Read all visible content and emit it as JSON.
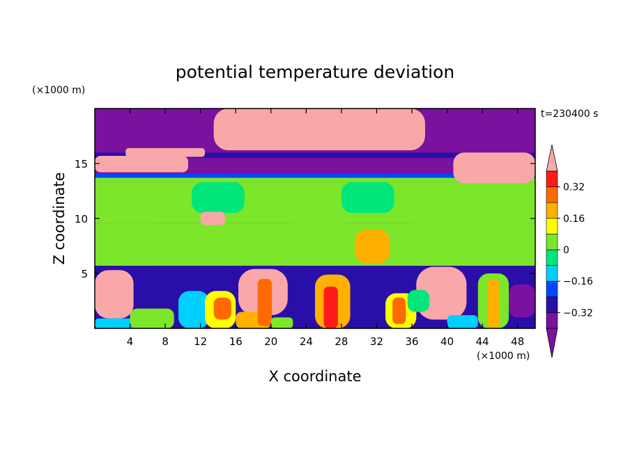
{
  "chart_data": {
    "type": "heatmap",
    "title": "potential temperature deviation",
    "xlabel": "X coordinate",
    "ylabel": "Z coordinate",
    "x_unit": "(×1000 m)",
    "y_unit": "(×1000 m)",
    "time_label": "t=230400 s",
    "xlim": [
      0,
      50
    ],
    "ylim": [
      0,
      20
    ],
    "x_ticks": [
      4,
      8,
      12,
      16,
      20,
      24,
      28,
      32,
      36,
      40,
      44,
      48
    ],
    "y_ticks": [
      5,
      10,
      15
    ],
    "x_tick_labels": [
      "4",
      "8",
      "12",
      "16",
      "20",
      "24",
      "28",
      "32",
      "36",
      "40",
      "44",
      "48"
    ],
    "y_tick_labels": [
      "5",
      "10",
      "15"
    ],
    "colorbar": {
      "levels": [
        -0.4,
        -0.32,
        -0.24,
        -0.16,
        -0.08,
        0,
        0.08,
        0.16,
        0.24,
        0.32,
        0.4
      ],
      "labels": [
        {
          "value": 0.32,
          "text": "0.32"
        },
        {
          "value": 0.16,
          "text": "0.16"
        },
        {
          "value": 0,
          "text": "0"
        },
        {
          "value": -0.16,
          "text": "−0.16"
        },
        {
          "value": -0.32,
          "text": "−0.32"
        }
      ],
      "colors": [
        "#7b119f",
        "#2a0ea8",
        "#0047ff",
        "#00cfff",
        "#00e67a",
        "#7ce62a",
        "#ffff00",
        "#ffb000",
        "#ff6a00",
        "#ff1a1a"
      ],
      "over_color": "#f8a8a8",
      "under_color": "#7b119f",
      "extend": "both"
    },
    "field": {
      "background_level_value": -0.36,
      "bands": [
        {
          "z_min": 0,
          "z_max": 5.4,
          "value": -0.28
        },
        {
          "z_min": 5.4,
          "z_max": 5.7,
          "value": -0.3
        },
        {
          "z_min": 5.7,
          "z_max": 9.6,
          "value": 0.02
        },
        {
          "z_min": 9.6,
          "z_max": 13.3,
          "value": 0.06
        },
        {
          "z_min": 13.3,
          "z_max": 13.7,
          "value": 0.0
        },
        {
          "z_min": 13.7,
          "z_max": 14.1,
          "value": -0.2
        },
        {
          "z_min": 14.1,
          "z_max": 15.5,
          "value": -0.38
        },
        {
          "z_min": 15.5,
          "z_max": 16.0,
          "value": -0.3
        },
        {
          "z_min": 16.0,
          "z_max": 20,
          "value": -0.38
        }
      ],
      "regions": [
        {
          "x": 0.0,
          "w": 8.5,
          "z": 5.7,
          "h": 3.9,
          "value": 0.06
        },
        {
          "x": 12.5,
          "w": 5.0,
          "z": 5.7,
          "h": 3.5,
          "value": 0.02
        },
        {
          "x": 21.5,
          "w": 8.0,
          "z": 5.7,
          "h": 4.0,
          "value": 0.06
        },
        {
          "x": 29.5,
          "w": 4.0,
          "z": 5.9,
          "h": 3.1,
          "value": 0.18
        },
        {
          "x": 35.0,
          "w": 15.0,
          "z": 5.7,
          "h": 4.0,
          "value": 0.06
        },
        {
          "x": 11.0,
          "w": 6.0,
          "z": 10.5,
          "h": 2.8,
          "value": -0.06
        },
        {
          "x": 28.0,
          "w": 6.0,
          "z": 10.5,
          "h": 2.8,
          "value": -0.02
        },
        {
          "x": 12.0,
          "w": 2.8,
          "z": 9.4,
          "h": 1.2,
          "value": 0.42
        },
        {
          "x": 0.0,
          "w": 10.6,
          "z": 14.2,
          "h": 1.5,
          "value": 0.42
        },
        {
          "x": 40.7,
          "w": 9.3,
          "z": 13.2,
          "h": 2.8,
          "value": 0.42
        },
        {
          "x": 13.5,
          "w": 24.0,
          "z": 16.2,
          "h": 3.8,
          "value": 0.42
        },
        {
          "x": 3.5,
          "w": 9.0,
          "z": 15.6,
          "h": 0.8,
          "value": 0.42
        },
        {
          "x": 0.0,
          "w": 4.4,
          "z": 0.9,
          "h": 4.4,
          "value": 0.42
        },
        {
          "x": 16.3,
          "w": 5.6,
          "z": 1.2,
          "h": 4.2,
          "value": 0.42
        },
        {
          "x": 36.5,
          "w": 5.7,
          "z": 0.8,
          "h": 4.8,
          "value": 0.42
        },
        {
          "x": 0.0,
          "w": 6.0,
          "z": 0.0,
          "h": 0.9,
          "value": -0.12
        },
        {
          "x": 4.0,
          "w": 5.0,
          "z": 0.0,
          "h": 1.8,
          "value": 0.04
        },
        {
          "x": 9.5,
          "w": 3.5,
          "z": 0.0,
          "h": 3.4,
          "value": -0.12
        },
        {
          "x": 12.5,
          "w": 3.5,
          "z": 0.0,
          "h": 3.4,
          "value": 0.12
        },
        {
          "x": 13.5,
          "w": 2.0,
          "z": 0.8,
          "h": 2.0,
          "value": 0.3
        },
        {
          "x": 16.0,
          "w": 4.0,
          "z": 0.0,
          "h": 1.5,
          "value": 0.18
        },
        {
          "x": 18.5,
          "w": 1.6,
          "z": 0.2,
          "h": 4.3,
          "value": 0.24
        },
        {
          "x": 20.0,
          "w": 2.5,
          "z": 0.0,
          "h": 1.0,
          "value": 0.06
        },
        {
          "x": 25.0,
          "w": 4.0,
          "z": 0.0,
          "h": 4.9,
          "value": 0.22
        },
        {
          "x": 26.0,
          "w": 1.6,
          "z": 0.0,
          "h": 3.8,
          "value": 0.36
        },
        {
          "x": 33.0,
          "w": 3.5,
          "z": 0.0,
          "h": 3.2,
          "value": 0.12
        },
        {
          "x": 33.8,
          "w": 1.5,
          "z": 0.4,
          "h": 2.4,
          "value": 0.3
        },
        {
          "x": 35.5,
          "w": 2.5,
          "z": 1.5,
          "h": 2.0,
          "value": -0.02
        },
        {
          "x": 43.5,
          "w": 3.5,
          "z": 0.0,
          "h": 5.0,
          "value": 0.04
        },
        {
          "x": 44.6,
          "w": 1.3,
          "z": 0.0,
          "h": 4.5,
          "value": 0.2
        },
        {
          "x": 40.0,
          "w": 3.5,
          "z": 0.0,
          "h": 1.2,
          "value": -0.12
        },
        {
          "x": 47.0,
          "w": 3.0,
          "z": 1.0,
          "h": 3.0,
          "value": -0.38
        }
      ]
    }
  }
}
